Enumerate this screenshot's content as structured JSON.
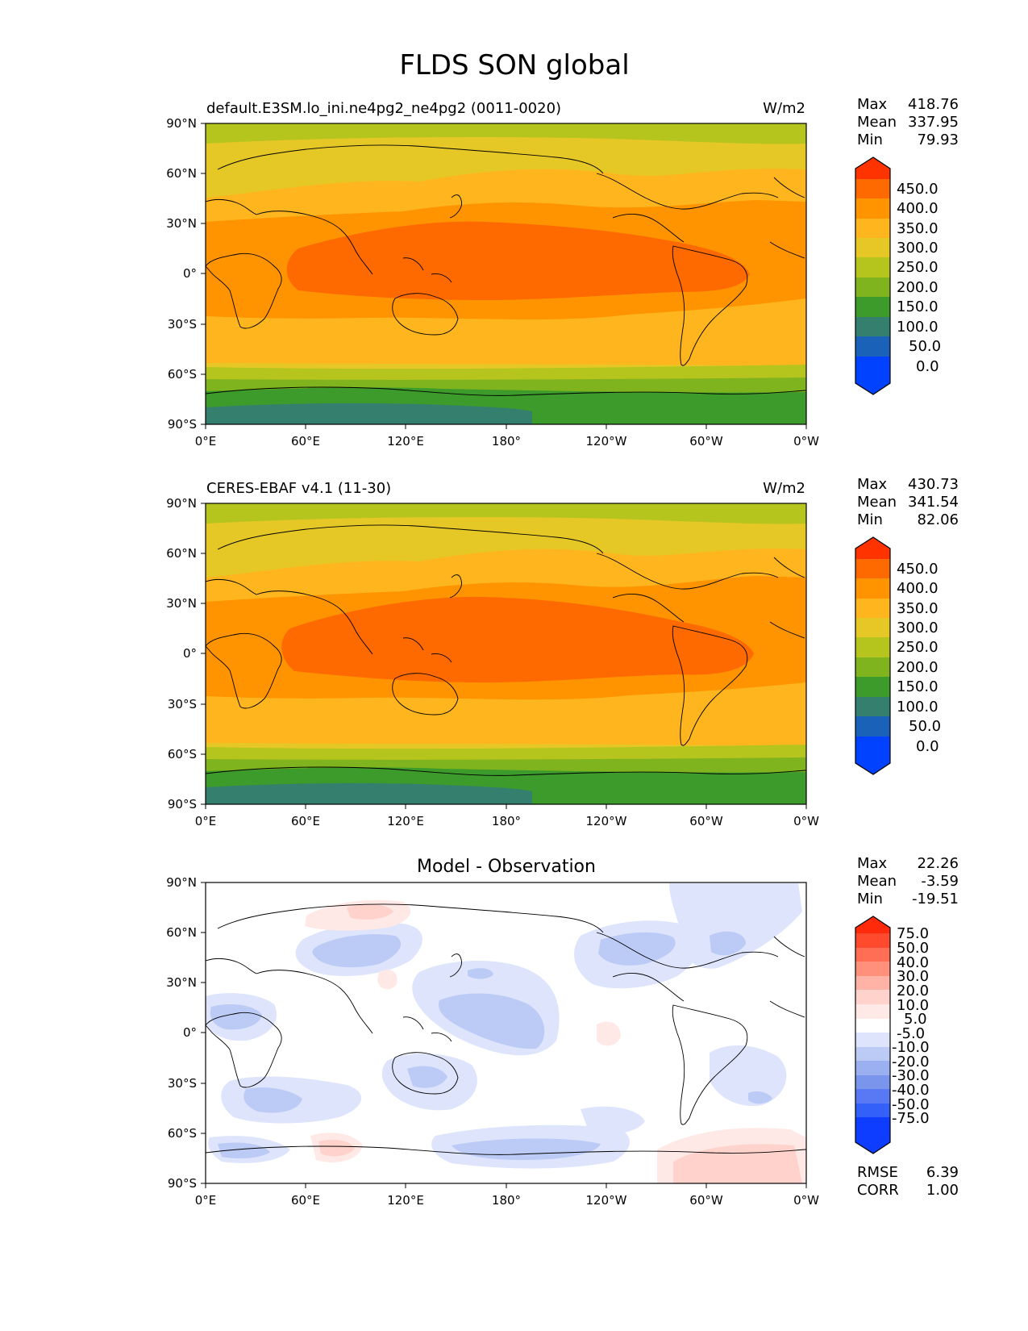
{
  "figure_title": "FLDS SON global",
  "lat_ticks": [
    "90°N",
    "60°N",
    "30°N",
    "0°",
    "30°S",
    "60°S",
    "90°S"
  ],
  "lon_ticks": [
    "0°E",
    "60°E",
    "120°E",
    "180°",
    "120°W",
    "60°W",
    "0°W"
  ],
  "panels": [
    {
      "name": "model",
      "left_title": "default.E3SM.lo_ini.ne4pg2_ne4pg2 (0011-0020)",
      "center_title": "",
      "units": "W/m2",
      "stats": [
        {
          "label": "Max",
          "value": "418.76"
        },
        {
          "label": "Mean",
          "value": "337.95"
        },
        {
          "label": "Min",
          "value": "79.93"
        }
      ],
      "colorbar_labels": [
        "450.0",
        "400.0",
        "350.0",
        "300.0",
        "250.0",
        "200.0",
        "150.0",
        "100.0",
        "50.0",
        "0.0"
      ],
      "colorbar_colors": [
        "#ff3300",
        "#ff6a00",
        "#ff9400",
        "#ffb61e",
        "#e5c826",
        "#b6c41e",
        "#7fb41e",
        "#3c9b2a",
        "#357f6e",
        "#1a62b8",
        "#0042ff"
      ],
      "extra_stats": []
    },
    {
      "name": "observation",
      "left_title": "CERES-EBAF v4.1 (11-30)",
      "center_title": "",
      "units": "W/m2",
      "stats": [
        {
          "label": "Max",
          "value": "430.73"
        },
        {
          "label": "Mean",
          "value": "341.54"
        },
        {
          "label": "Min",
          "value": "82.06"
        }
      ],
      "colorbar_labels": [
        "450.0",
        "400.0",
        "350.0",
        "300.0",
        "250.0",
        "200.0",
        "150.0",
        "100.0",
        "50.0",
        "0.0"
      ],
      "colorbar_colors": [
        "#ff3300",
        "#ff6a00",
        "#ff9400",
        "#ffb61e",
        "#e5c826",
        "#b6c41e",
        "#7fb41e",
        "#3c9b2a",
        "#357f6e",
        "#1a62b8",
        "#0042ff"
      ],
      "extra_stats": []
    },
    {
      "name": "difference",
      "left_title": "",
      "center_title": "Model - Observation",
      "units": "",
      "stats": [
        {
          "label": "Max",
          "value": "22.26"
        },
        {
          "label": "Mean",
          "value": "-3.59"
        },
        {
          "label": "Min",
          "value": "-19.51"
        }
      ],
      "colorbar_labels": [
        "75.0",
        "50.0",
        "40.0",
        "30.0",
        "20.0",
        "10.0",
        "5.0",
        "-5.0",
        "-10.0",
        "-20.0",
        "-30.0",
        "-40.0",
        "-50.0",
        "-75.0"
      ],
      "colorbar_colors": [
        "#ff2a0a",
        "#ff4a2e",
        "#ff6e55",
        "#ff917c",
        "#ffb3a6",
        "#ffd2cc",
        "#ffe9e6",
        "#ffffff",
        "#dde4fb",
        "#bccaf6",
        "#9bb0f1",
        "#7a95ec",
        "#5878f4",
        "#3460fa",
        "#0e3dff"
      ],
      "extra_stats": [
        {
          "label": "RMSE",
          "value": "6.39"
        },
        {
          "label": "CORR",
          "value": "1.00"
        }
      ]
    }
  ]
}
